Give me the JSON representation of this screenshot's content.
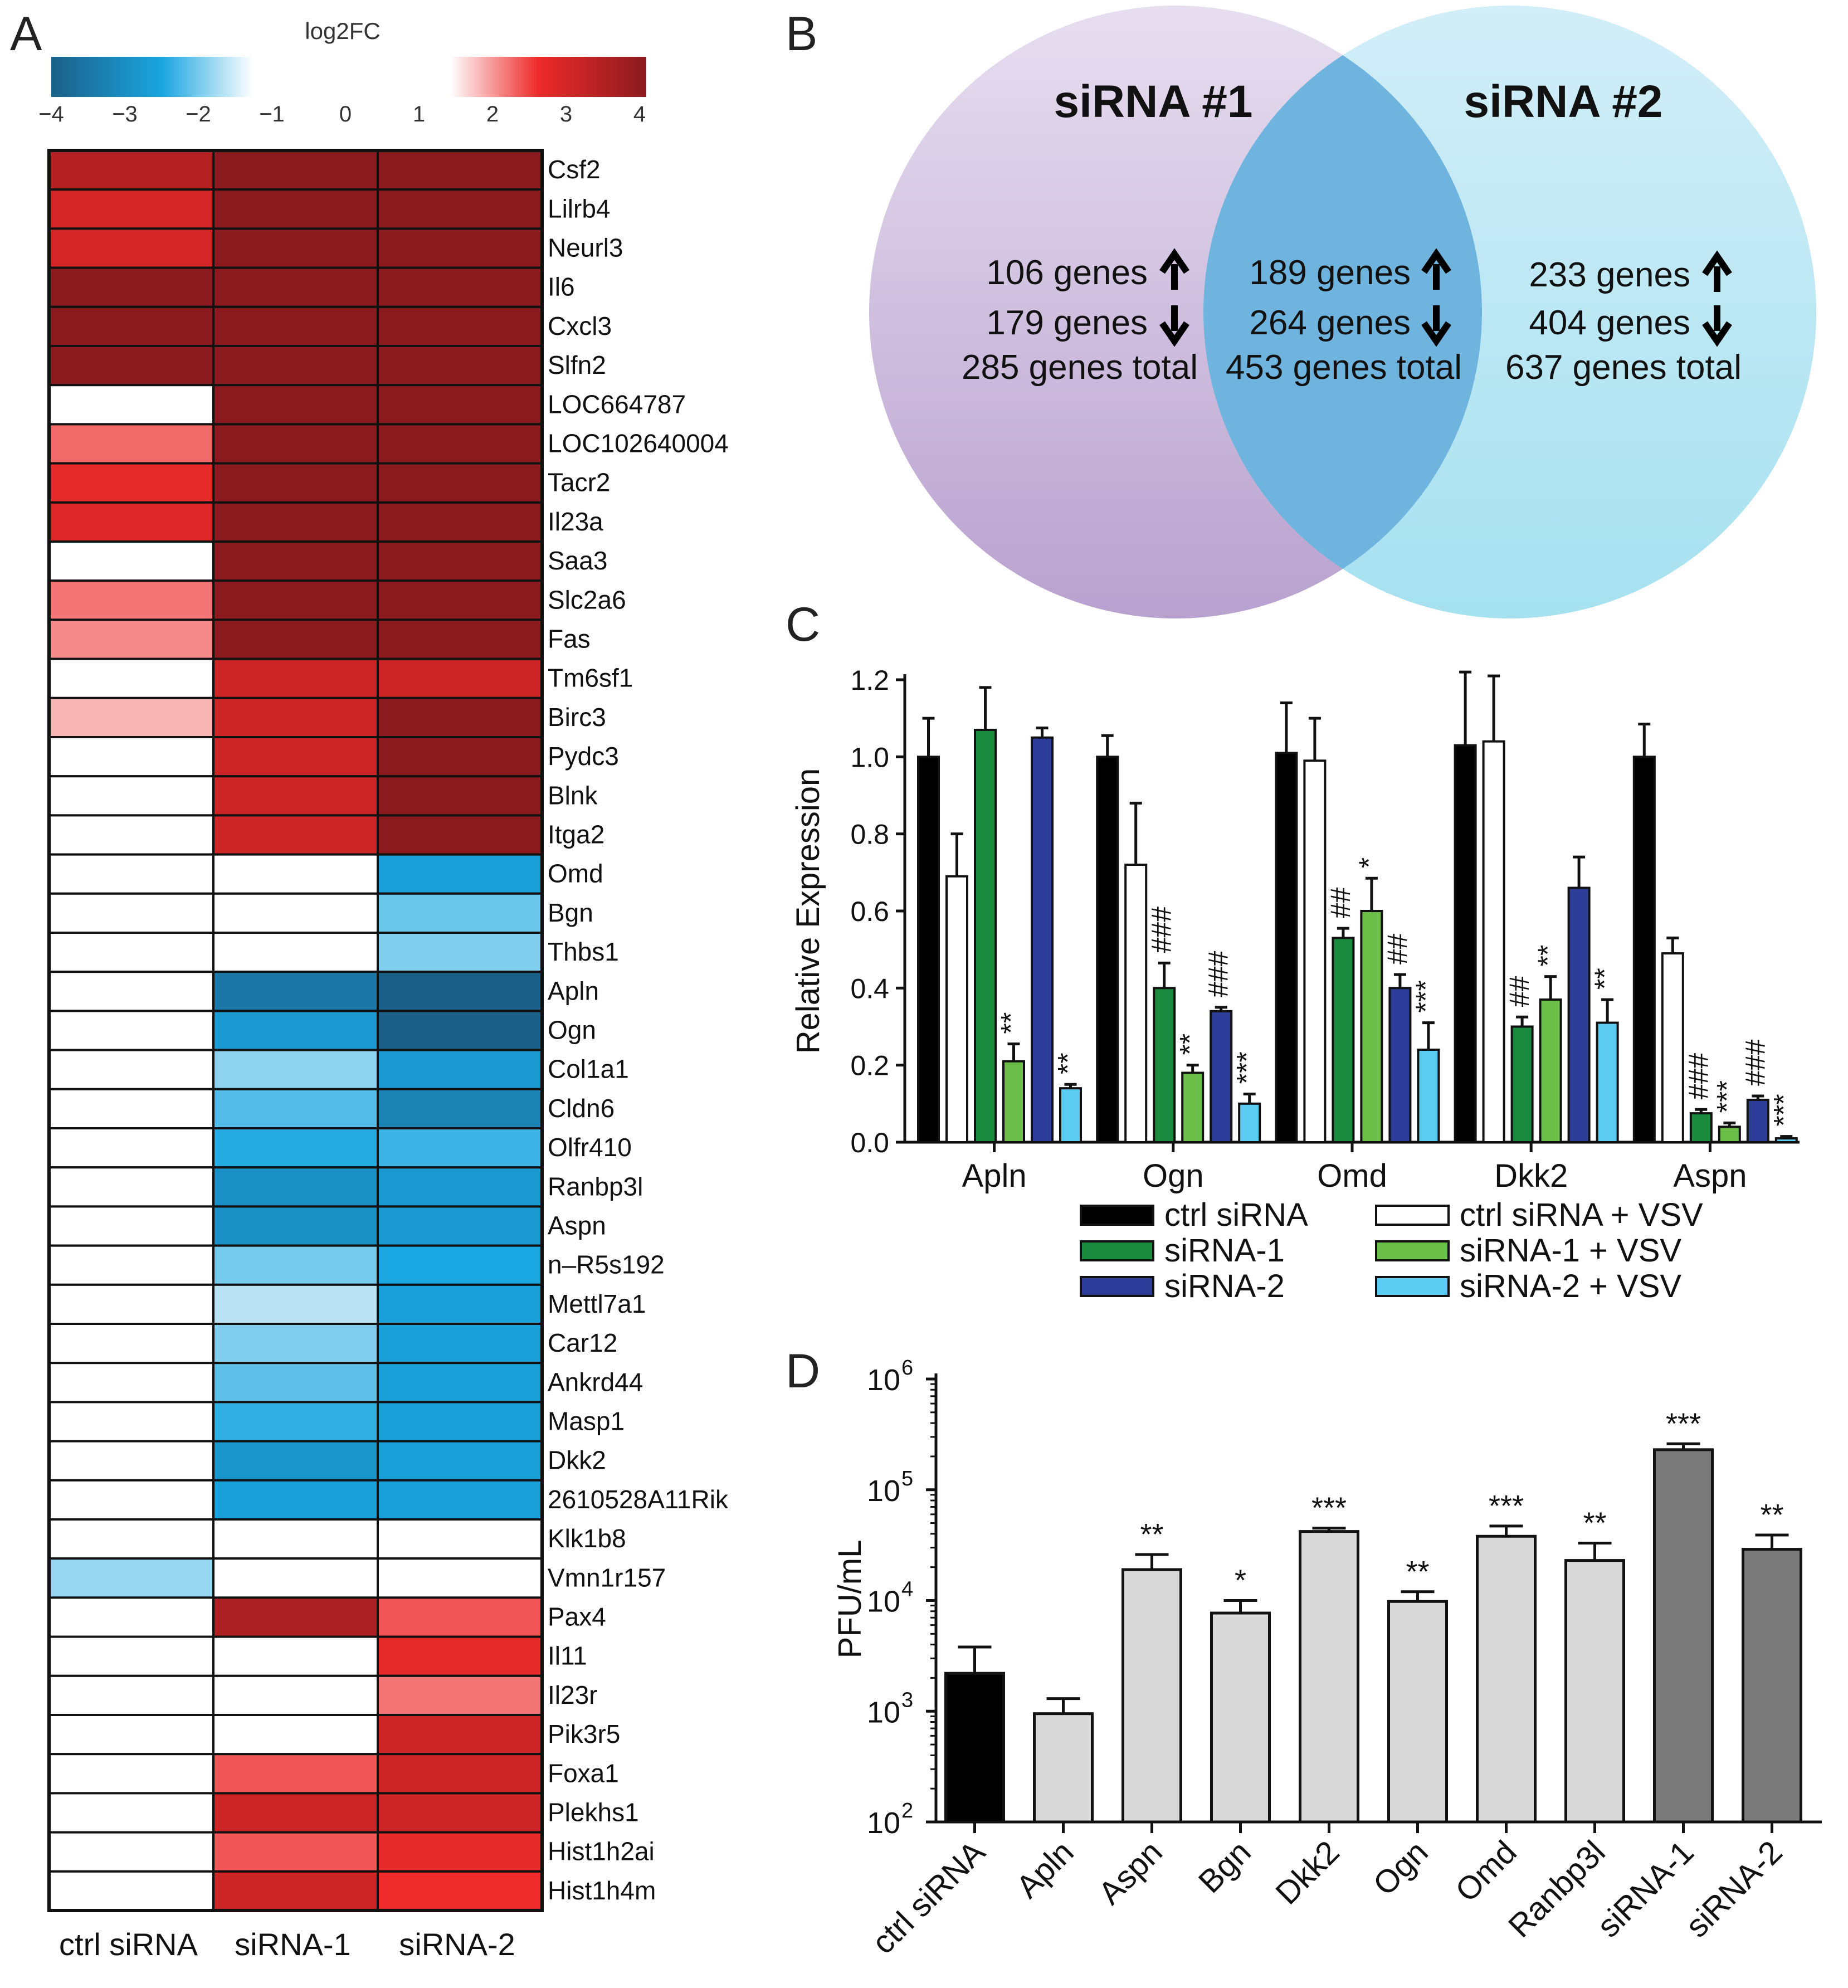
{
  "panel_labels": [
    "A",
    "B",
    "C",
    "D"
  ],
  "chart_data": [
    {
      "panel": "A",
      "type": "heatmap",
      "colorbar": {
        "title": "log2FC",
        "ticks": [
          "−4",
          "−3",
          "−2",
          "−1",
          "0",
          "1",
          "2",
          "3",
          "4"
        ],
        "range": [
          -4,
          4
        ]
      },
      "columns": [
        "ctrl siRNA",
        "siRNA-1",
        "siRNA-2"
      ],
      "rows": [
        "Csf2",
        "Lilrb4",
        "Neurl3",
        "Il6",
        "Cxcl3",
        "Slfn2",
        "LOC664787",
        "LOC102640004",
        "Tacr2",
        "Il23a",
        "Saa3",
        "Slc2a6",
        "Fas",
        "Tm6sf1",
        "Birc3",
        "Pydc3",
        "Blnk",
        "Itga2",
        "Omd",
        "Bgn",
        "Thbs1",
        "Apln",
        "Ogn",
        "Col1a1",
        "Cldn6",
        "Olfr410",
        "Ranbp3l",
        "Aspn",
        "n–R5s192",
        "Mettl7a1",
        "Car12",
        "Ankrd44",
        "Masp1",
        "Dkk2",
        "2610528A11Rik",
        "Klk1b8",
        "Vmn1r157",
        "Pax4",
        "Il11",
        "Il23r",
        "Pik3r5",
        "Foxa1",
        "Plekhs1",
        "Hist1h2ai",
        "Hist1h4m"
      ],
      "values": [
        [
          3.2,
          4,
          4
        ],
        [
          2.8,
          4,
          4
        ],
        [
          2.8,
          4,
          4
        ],
        [
          4,
          4,
          4
        ],
        [
          4,
          4,
          4
        ],
        [
          4,
          4,
          4
        ],
        [
          0,
          4,
          4
        ],
        [
          1.9,
          4,
          4
        ],
        [
          2.6,
          4,
          4
        ],
        [
          2.7,
          4,
          4
        ],
        [
          0,
          4,
          4
        ],
        [
          1.8,
          4,
          4
        ],
        [
          1.6,
          4,
          4
        ],
        [
          0,
          2.9,
          2.9
        ],
        [
          1.2,
          2.9,
          4
        ],
        [
          0,
          2.9,
          4
        ],
        [
          0,
          2.9,
          4
        ],
        [
          0,
          2.9,
          4
        ],
        [
          0,
          0,
          -2.6
        ],
        [
          0,
          0,
          -1.8
        ],
        [
          0,
          0,
          -1.6
        ],
        [
          0,
          -3.3,
          -3.8
        ],
        [
          0,
          -2.7,
          -3.8
        ],
        [
          0,
          -1.5,
          -2.7
        ],
        [
          0,
          -2.0,
          -3.1
        ],
        [
          0,
          -2.4,
          -2.2
        ],
        [
          0,
          -2.9,
          -2.7
        ],
        [
          0,
          -2.9,
          -2.7
        ],
        [
          0,
          -1.7,
          -2.5
        ],
        [
          0,
          -1.1,
          -2.6
        ],
        [
          0,
          -1.6,
          -2.6
        ],
        [
          0,
          -1.9,
          -2.6
        ],
        [
          0,
          -2.3,
          -2.6
        ],
        [
          0,
          -2.8,
          -2.6
        ],
        [
          0,
          -2.6,
          -2.6
        ],
        [
          0,
          0,
          0
        ],
        [
          -1.4,
          0,
          0
        ],
        [
          0,
          3.3,
          2.1
        ],
        [
          0,
          0,
          2.6
        ],
        [
          0,
          0,
          1.8
        ],
        [
          0,
          0,
          2.9
        ],
        [
          0,
          2.1,
          2.9
        ],
        [
          0,
          2.9,
          2.9
        ],
        [
          0,
          2.1,
          2.6
        ],
        [
          0,
          2.9,
          2.5
        ]
      ]
    },
    {
      "panel": "B",
      "type": "venn",
      "sets": [
        {
          "name": "siRNA #1",
          "up": "106 genes",
          "down": "179 genes",
          "total": "285 genes total"
        },
        {
          "name": "siRNA #2",
          "up": "233 genes",
          "down": "404 genes",
          "total": "637 genes total"
        }
      ],
      "overlap": {
        "up": "189 genes",
        "down": "264 genes",
        "total": "453 genes total"
      },
      "colors": {
        "left": "#c9b6dd",
        "right": "#9ddcee",
        "overlap": "#7cbde3"
      }
    },
    {
      "panel": "C",
      "type": "bar",
      "ylabel": "Relative Expression",
      "ylim": [
        0,
        1.2
      ],
      "yticks": [
        "0.0",
        "0.2",
        "0.4",
        "0.6",
        "0.8",
        "1.0",
        "1.2"
      ],
      "categories": [
        "Apln",
        "Ogn",
        "Omd",
        "Dkk2",
        "Aspn"
      ],
      "series": [
        {
          "name": "ctrl siRNA",
          "color": "#000000",
          "values": [
            1.0,
            1.0,
            1.01,
            1.03,
            1.0
          ],
          "errors": [
            0.1,
            0.055,
            0.13,
            0.19,
            0.085
          ],
          "marks": [
            "",
            "",
            "",
            "",
            ""
          ]
        },
        {
          "name": "ctrl siRNA + VSV",
          "color": "#ffffff",
          "values": [
            0.69,
            0.72,
            0.99,
            1.04,
            0.49
          ],
          "errors": [
            0.11,
            0.16,
            0.11,
            0.17,
            0.04
          ],
          "marks": [
            "",
            "",
            "",
            "",
            ""
          ]
        },
        {
          "name": "siRNA-1",
          "color": "#1a8a3e",
          "values": [
            1.07,
            0.4,
            0.53,
            0.3,
            0.075
          ],
          "errors": [
            0.11,
            0.065,
            0.025,
            0.025,
            0.01
          ],
          "marks": [
            "",
            "###",
            "##",
            "##",
            "###"
          ]
        },
        {
          "name": "siRNA-1 + VSV",
          "color": "#6cc04a",
          "values": [
            0.21,
            0.18,
            0.6,
            0.37,
            0.04
          ],
          "errors": [
            0.045,
            0.02,
            0.085,
            0.06,
            0.01
          ],
          "marks": [
            "**",
            "**",
            "*",
            "**",
            "***"
          ]
        },
        {
          "name": "siRNA-2",
          "color": "#2c3e99",
          "values": [
            1.05,
            0.34,
            0.4,
            0.66,
            0.11
          ],
          "errors": [
            0.025,
            0.01,
            0.035,
            0.08,
            0.01
          ],
          "marks": [
            "",
            "###",
            "##",
            "",
            "###"
          ]
        },
        {
          "name": "siRNA-2 + VSV",
          "color": "#5ccbf2",
          "values": [
            0.14,
            0.1,
            0.24,
            0.31,
            0.01
          ],
          "errors": [
            0.01,
            0.025,
            0.07,
            0.06,
            0.005
          ],
          "marks": [
            "**",
            "***",
            "***",
            "**",
            "***"
          ]
        }
      ],
      "legend": [
        "ctrl siRNA",
        "ctrl siRNA + VSV",
        "siRNA-1",
        "siRNA-1 + VSV",
        "siRNA-2",
        "siRNA-2 + VSV"
      ]
    },
    {
      "panel": "D",
      "type": "bar",
      "scale": "log",
      "ylabel": "PFU/mL",
      "ylim": [
        100,
        1000000
      ],
      "yticks": [
        {
          "base": "10",
          "exp": "2"
        },
        {
          "base": "10",
          "exp": "3"
        },
        {
          "base": "10",
          "exp": "4"
        },
        {
          "base": "10",
          "exp": "5"
        },
        {
          "base": "10",
          "exp": "6"
        }
      ],
      "categories": [
        "ctrl siRNA",
        "Apln",
        "Aspn",
        "Bgn",
        "Dkk2",
        "Ogn",
        "Omd",
        "Ranbp3l",
        "siRNA-1",
        "siRNA-2"
      ],
      "values": [
        2200,
        950,
        19000,
        7700,
        42000,
        9800,
        38000,
        23000,
        230000,
        29000
      ],
      "error_top": [
        3800,
        1300,
        26000,
        10000,
        45000,
        12000,
        47000,
        33000,
        260000,
        39000
      ],
      "marks": [
        "",
        "",
        "**",
        "*",
        "***",
        "**",
        "***",
        "**",
        "***",
        "**"
      ],
      "colors": [
        "#000000",
        "#d9d9d9",
        "#d9d9d9",
        "#d9d9d9",
        "#d9d9d9",
        "#d9d9d9",
        "#d9d9d9",
        "#d9d9d9",
        "#7a7a7a",
        "#7a7a7a"
      ]
    }
  ]
}
